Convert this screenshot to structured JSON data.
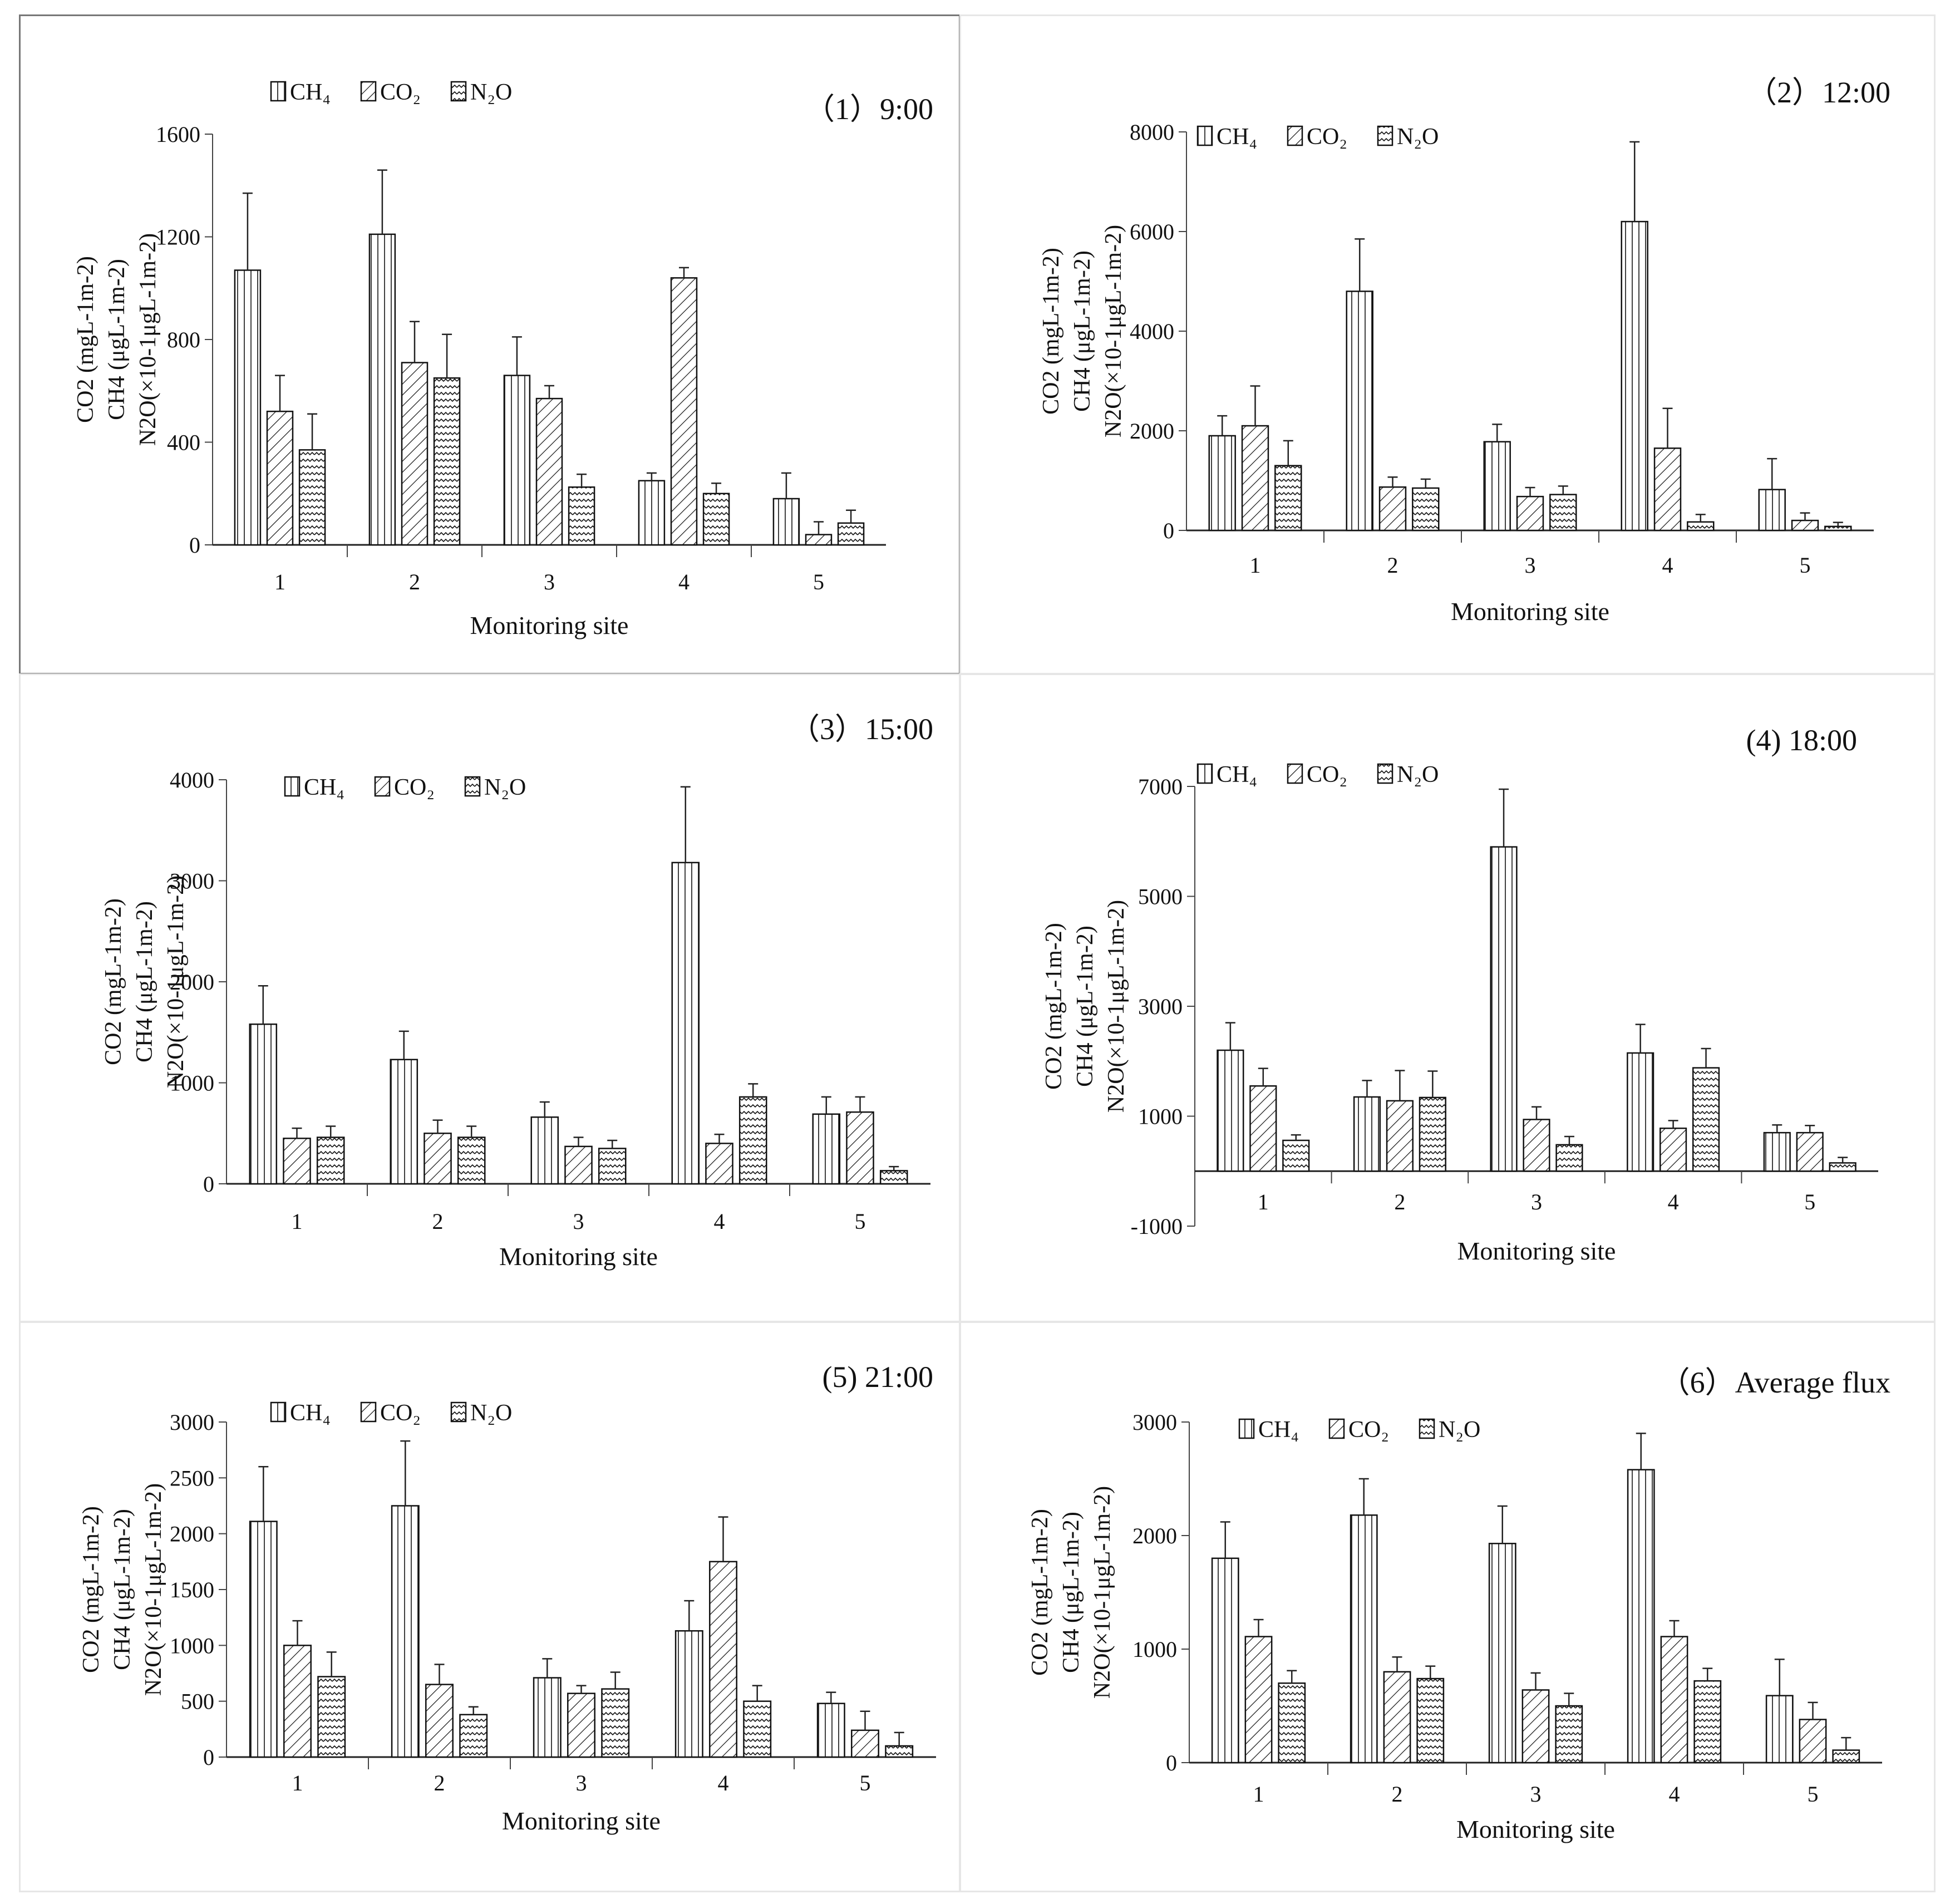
{
  "figure": {
    "xlabel": "Monitoring site",
    "ylabel_lines": [
      "CO2 (mgL-1m-2)",
      "CH4 (μgL-1m-2)",
      "N2O(×10-1μgL-1m-2)"
    ]
  },
  "colors": {
    "bar_stroke": "#111111",
    "bar_fill": "#ffffff",
    "panel_border": "#8a8a8a"
  },
  "chart_data": [
    {
      "type": "bar",
      "title": "（1）9:00",
      "xlabel": "Monitoring site",
      "ylabel": "CO2 (mgL-1m-2) / CH4 (μgL-1m-2) / N2O(×10-1μgL-1m-2)",
      "categories": [
        "1",
        "2",
        "3",
        "4",
        "5"
      ],
      "ylim": [
        0,
        1600
      ],
      "yticks": [
        "0",
        "400",
        "800",
        "1200",
        "1600"
      ],
      "legend": [
        "CH₄",
        "CO₂",
        "N₂O"
      ],
      "series": [
        {
          "name": "CH4",
          "values": [
            1070,
            1210,
            660,
            250,
            180
          ],
          "errors": [
            300,
            250,
            150,
            30,
            100
          ]
        },
        {
          "name": "CO2",
          "values": [
            520,
            710,
            570,
            1040,
            40
          ],
          "errors": [
            140,
            160,
            50,
            40,
            50
          ]
        },
        {
          "name": "N2O",
          "values": [
            370,
            650,
            225,
            200,
            85
          ],
          "errors": [
            140,
            170,
            50,
            40,
            50
          ]
        }
      ]
    },
    {
      "type": "bar",
      "title": "（2）12:00",
      "xlabel": "Monitoring site",
      "ylabel": "CO2 (mgL-1m-2) / CH4 (μgL-1m-2) / N2O(×10-1μgL-1m-2)",
      "categories": [
        "1",
        "2",
        "3",
        "4",
        "5"
      ],
      "ylim": [
        0,
        8000
      ],
      "yticks": [
        "0",
        "2000",
        "4000",
        "6000",
        "8000"
      ],
      "legend": [
        "CH₄",
        "CO₂",
        "N₂O"
      ],
      "series": [
        {
          "name": "CH4",
          "values": [
            1900,
            4800,
            1780,
            6200,
            820
          ],
          "errors": [
            400,
            1050,
            350,
            1600,
            620
          ]
        },
        {
          "name": "CO2",
          "values": [
            2100,
            870,
            680,
            1650,
            200
          ],
          "errors": [
            800,
            200,
            180,
            800,
            150
          ]
        },
        {
          "name": "N2O",
          "values": [
            1300,
            850,
            720,
            170,
            80
          ],
          "errors": [
            500,
            180,
            170,
            150,
            80
          ]
        }
      ]
    },
    {
      "type": "bar",
      "title": "（3）15:00",
      "xlabel": "Monitoring site",
      "ylabel": "CO2 (mgL-1m-2) / CH4 (μgL-1m-2) / N2O(×10-1μgL-1m-2)",
      "categories": [
        "1",
        "2",
        "3",
        "4",
        "5"
      ],
      "ylim": [
        0,
        4000
      ],
      "yticks": [
        "0",
        "1000",
        "2000",
        "3000",
        "4000"
      ],
      "legend": [
        "CH₄",
        "CO₂",
        "N₂O"
      ],
      "series": [
        {
          "name": "CH4",
          "values": [
            1580,
            1230,
            660,
            3180,
            690
          ],
          "errors": [
            380,
            280,
            150,
            750,
            170
          ]
        },
        {
          "name": "CO2",
          "values": [
            450,
            500,
            370,
            400,
            710
          ],
          "errors": [
            100,
            130,
            90,
            90,
            150
          ]
        },
        {
          "name": "N2O",
          "values": [
            460,
            460,
            350,
            860,
            130
          ],
          "errors": [
            110,
            110,
            80,
            130,
            40
          ]
        }
      ]
    },
    {
      "type": "bar",
      "title": "(4) 18:00",
      "xlabel": "Monitoring site",
      "ylabel": "CO2 (mgL-1m-2) / CH4 (μgL-1m-2) / N2O(×10-1μgL-1m-2)",
      "categories": [
        "1",
        "2",
        "3",
        "4",
        "5"
      ],
      "ylim": [
        -1000,
        7000
      ],
      "yticks": [
        "-1000",
        "1000",
        "3000",
        "5000",
        "7000"
      ],
      "legend": [
        "CH₄",
        "CO₂",
        "N₂O"
      ],
      "series": [
        {
          "name": "CH4",
          "values": [
            2200,
            1350,
            5900,
            2150,
            700
          ],
          "errors": [
            500,
            300,
            1050,
            520,
            140
          ]
        },
        {
          "name": "CO2",
          "values": [
            1550,
            1280,
            940,
            780,
            700
          ],
          "errors": [
            320,
            550,
            230,
            140,
            130
          ]
        },
        {
          "name": "N2O",
          "values": [
            560,
            1340,
            480,
            1880,
            150
          ],
          "errors": [
            100,
            480,
            150,
            350,
            100
          ]
        }
      ]
    },
    {
      "type": "bar",
      "title": "(5) 21:00",
      "xlabel": "Monitoring site",
      "ylabel": "CO2 (mgL-1m-2) / CH4 (μgL-1m-2) / N2O(×10-1μgL-1m-2)",
      "categories": [
        "1",
        "2",
        "3",
        "4",
        "5"
      ],
      "ylim": [
        0,
        3000
      ],
      "yticks": [
        "0",
        "500",
        "1000",
        "1500",
        "2000",
        "2500",
        "3000"
      ],
      "legend": [
        "CH₄",
        "CO₂",
        "N₂O"
      ],
      "series": [
        {
          "name": "CH4",
          "values": [
            2110,
            2250,
            710,
            1130,
            480
          ],
          "errors": [
            490,
            580,
            170,
            270,
            100
          ]
        },
        {
          "name": "CO2",
          "values": [
            1000,
            650,
            570,
            1750,
            240
          ],
          "errors": [
            220,
            180,
            70,
            400,
            170
          ]
        },
        {
          "name": "N2O",
          "values": [
            720,
            380,
            610,
            500,
            100
          ],
          "errors": [
            220,
            70,
            150,
            140,
            120
          ]
        }
      ]
    },
    {
      "type": "bar",
      "title": "（6）Average flux",
      "xlabel": "Monitoring site",
      "ylabel": "CO2 (mgL-1m-2) / CH4 (μgL-1m-2) / N2O(×10-1μgL-1m-2)",
      "categories": [
        "1",
        "2",
        "3",
        "4",
        "5"
      ],
      "ylim": [
        0,
        3000
      ],
      "yticks": [
        "0",
        "1000",
        "2000",
        "3000"
      ],
      "legend": [
        "CH₄",
        "CO₂",
        "N₂O"
      ],
      "series": [
        {
          "name": "CH4",
          "values": [
            1800,
            2180,
            1930,
            2580,
            590
          ],
          "errors": [
            320,
            320,
            330,
            320,
            320
          ]
        },
        {
          "name": "CO2",
          "values": [
            1110,
            800,
            640,
            1110,
            380
          ],
          "errors": [
            150,
            130,
            150,
            140,
            150
          ]
        },
        {
          "name": "N2O",
          "values": [
            700,
            740,
            500,
            720,
            110
          ],
          "errors": [
            110,
            110,
            110,
            110,
            110
          ]
        }
      ]
    }
  ]
}
